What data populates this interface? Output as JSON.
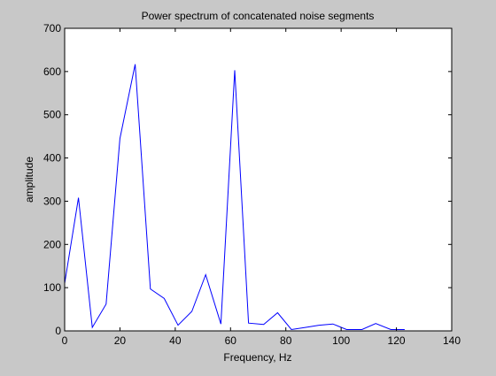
{
  "chart_data": {
    "type": "line",
    "title": "Power spectrum of concatenated noise segments",
    "xlabel": "Frequency, Hz",
    "ylabel": "amplitude",
    "xlim": [
      0,
      140
    ],
    "ylim": [
      0,
      700
    ],
    "xticks": [
      0,
      20,
      40,
      60,
      80,
      100,
      120,
      140
    ],
    "yticks": [
      0,
      100,
      200,
      300,
      400,
      500,
      600,
      700
    ],
    "grid": false,
    "line_color": "#0000ff",
    "series": [
      {
        "x": [
          0,
          5,
          10,
          15,
          20,
          25.5,
          31,
          36,
          41,
          46,
          51,
          56.5,
          61.5,
          66.5,
          72,
          77,
          82,
          87,
          92,
          97,
          102,
          107.5,
          112.5,
          118,
          123
        ],
        "y": [
          110,
          308,
          8,
          62,
          445,
          617,
          97,
          75,
          13,
          45,
          130,
          16,
          603,
          18,
          15,
          42,
          3,
          8,
          13,
          16,
          3,
          3,
          17,
          3,
          3
        ]
      }
    ]
  },
  "colors": {
    "figure_background": "#c8c8c8",
    "axes_background": "#ffffff"
  }
}
